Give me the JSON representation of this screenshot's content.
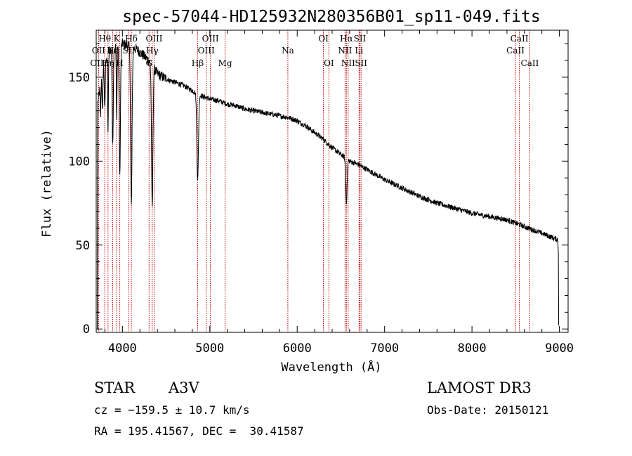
{
  "chart_data": {
    "type": "line",
    "title": "spec-57044-HD125932N280356B01_sp11-049.fits",
    "xlabel": "Wavelength (Å)",
    "ylabel": "Flux (relative)",
    "xlim": [
      3700,
      9100
    ],
    "ylim": [
      -2,
      178
    ],
    "xticks": [
      4000,
      5000,
      6000,
      7000,
      8000,
      9000
    ],
    "yticks": [
      0,
      50,
      100,
      150
    ],
    "spectrum": {
      "name": "flux",
      "continuum_x": [
        3700,
        3760,
        3800,
        3850,
        3900,
        3950,
        4000,
        4050,
        4100,
        4150,
        4200,
        4300,
        4400,
        4500,
        4600,
        4700,
        4800,
        4900,
        5000,
        5100,
        5200,
        5300,
        5400,
        5500,
        5600,
        5700,
        5800,
        5900,
        6000,
        6100,
        6200,
        6300,
        6400,
        6500,
        6600,
        6700,
        6800,
        6900,
        7000,
        7200,
        7400,
        7600,
        7800,
        8000,
        8200,
        8400,
        8600,
        8800,
        8990
      ],
      "continuum_y": [
        128,
        150,
        160,
        166,
        168,
        169,
        170,
        169,
        168,
        167,
        165,
        160,
        152,
        149,
        147,
        145,
        142,
        139,
        137,
        136,
        134,
        133,
        131,
        130,
        129,
        128,
        127,
        126,
        124,
        121,
        117,
        113,
        108,
        104,
        100,
        98,
        95,
        92,
        89,
        84,
        79,
        75,
        72,
        69,
        67,
        65,
        61,
        57,
        53
      ],
      "absorption_lines": [
        {
          "center": 3750,
          "depth": 20,
          "width": 4
        },
        {
          "center": 3771,
          "depth": 25,
          "width": 4
        },
        {
          "center": 3798,
          "depth": 30,
          "width": 5
        },
        {
          "center": 3835,
          "depth": 45,
          "width": 5
        },
        {
          "center": 3889,
          "depth": 60,
          "width": 6
        },
        {
          "center": 3934,
          "depth": 45,
          "width": 4
        },
        {
          "center": 3970,
          "depth": 80,
          "width": 7
        },
        {
          "center": 4102,
          "depth": 95,
          "width": 8
        },
        {
          "center": 4341,
          "depth": 85,
          "width": 8
        },
        {
          "center": 4861,
          "depth": 52,
          "width": 9
        },
        {
          "center": 6563,
          "depth": 26,
          "width": 8
        }
      ]
    },
    "marker_lines": [
      {
        "label": "Hθ",
        "x": 3798,
        "row": 1
      },
      {
        "label": "OII",
        "x": 3727,
        "row": 2
      },
      {
        "label": "OIII",
        "x": 3727,
        "row": 3
      },
      {
        "label": "Hη",
        "x": 3835,
        "row": 3
      },
      {
        "label": "K",
        "x": 3934,
        "row": 1
      },
      {
        "label": "Hε",
        "x": 3889,
        "row": 2
      },
      {
        "label": "H",
        "x": 3970,
        "row": 3
      },
      {
        "label": "Hδ",
        "x": 4102,
        "row": 1
      },
      {
        "label": "SII",
        "x": 4072,
        "row": 2
      },
      {
        "label": "OIII",
        "x": 4363,
        "row": 1
      },
      {
        "label": "Hγ",
        "x": 4341,
        "row": 2
      },
      {
        "label": "G",
        "x": 4305,
        "row": 3
      },
      {
        "label": "Hβ",
        "x": 4861,
        "row": 3
      },
      {
        "label": "OIII",
        "x": 5007,
        "row": 1
      },
      {
        "label": "OIII",
        "x": 4959,
        "row": 2
      },
      {
        "label": "Mg",
        "x": 5175,
        "row": 3
      },
      {
        "label": "Na",
        "x": 5893,
        "row": 2
      },
      {
        "label": "OI",
        "x": 6300,
        "row": 1
      },
      {
        "label": "OI",
        "x": 6363,
        "row": 3
      },
      {
        "label": "Hα",
        "x": 6563,
        "row": 1
      },
      {
        "label": "NII",
        "x": 6548,
        "row": 2
      },
      {
        "label": "NII",
        "x": 6583,
        "row": 3
      },
      {
        "label": "SII",
        "x": 6717,
        "row": 1
      },
      {
        "label": "Li",
        "x": 6708,
        "row": 2
      },
      {
        "label": "SII",
        "x": 6731,
        "row": 3
      },
      {
        "label": "CaII",
        "x": 8542,
        "row": 1
      },
      {
        "label": "CaII",
        "x": 8498,
        "row": 2
      },
      {
        "label": "CaII",
        "x": 8662,
        "row": 3
      }
    ]
  },
  "info": {
    "object_type": "STAR",
    "subclass": "A3V",
    "survey": "LAMOST DR3",
    "redshift": "cz = −159.5 ± 10.7 km/s",
    "obs_date": "Obs-Date: 20150121",
    "coords": "RA = 195.41567, DEC =  30.41587"
  }
}
